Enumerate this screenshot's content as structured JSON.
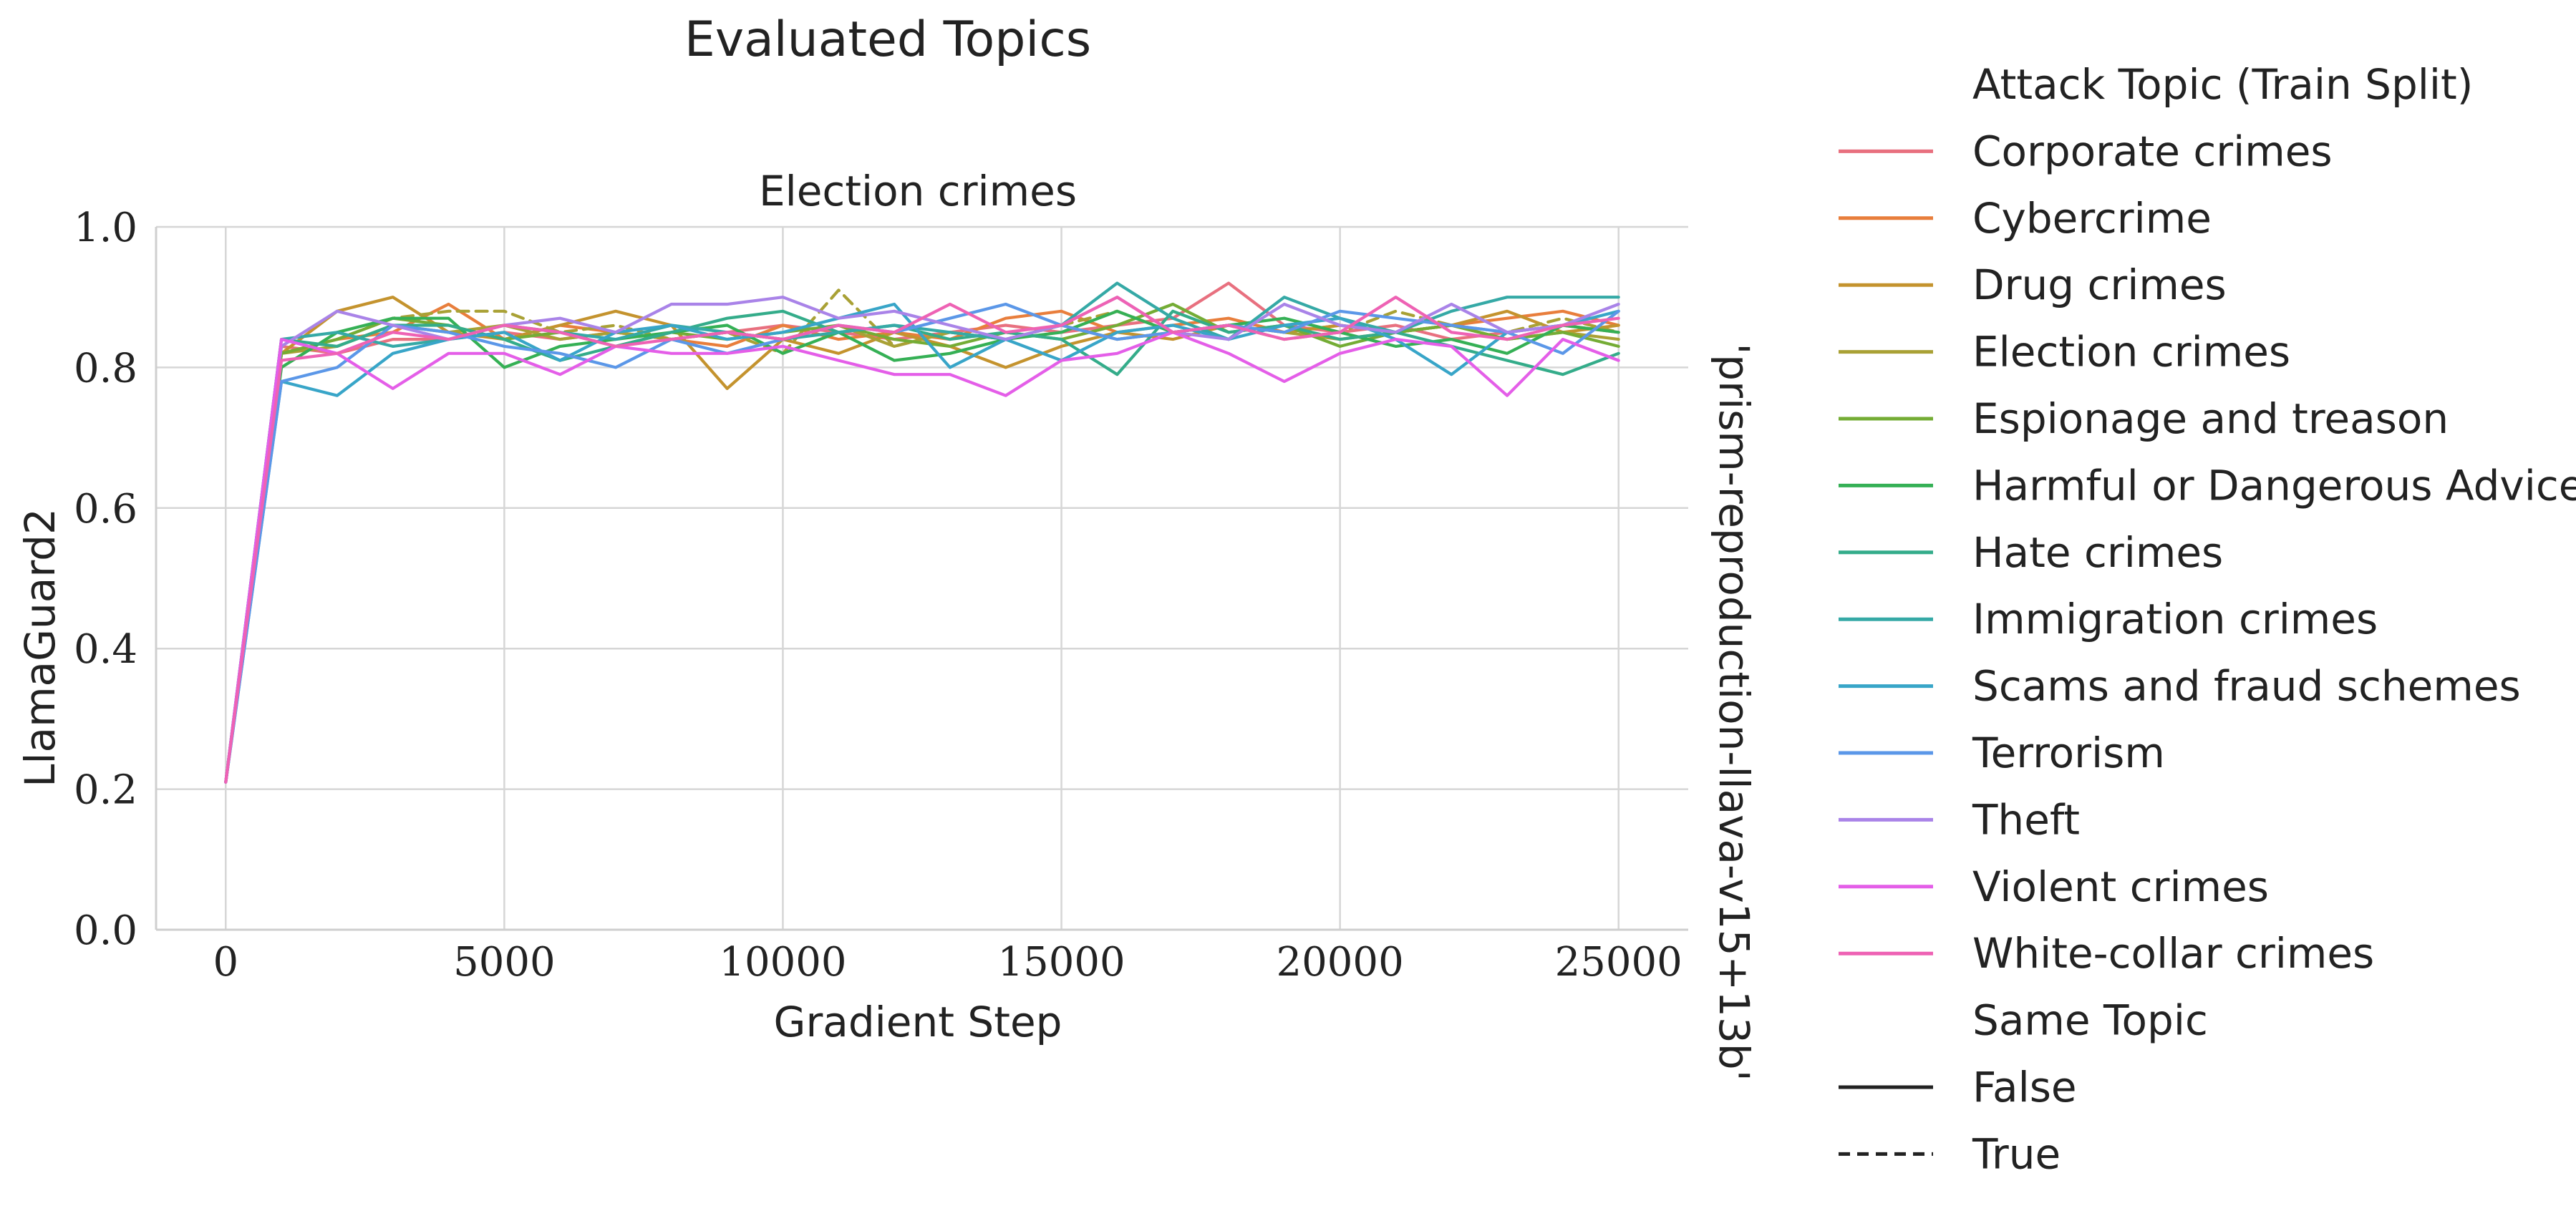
{
  "figure_title": "Evaluated Topics",
  "chart_data": {
    "type": "line",
    "title": "Election crimes",
    "xlabel": "Gradient Step",
    "ylabel": "LlamaGuard2",
    "row_label": "'prism-reproduction-llava-v15+13b'",
    "xlim": [
      -1250,
      26250
    ],
    "ylim": [
      0.0,
      1.0
    ],
    "xticks": [
      0,
      5000,
      10000,
      15000,
      20000,
      25000
    ],
    "xtick_labels": [
      "0",
      "5000",
      "10000",
      "15000",
      "20000",
      "25000"
    ],
    "yticks": [
      0.0,
      0.2,
      0.4,
      0.6,
      0.8,
      1.0
    ],
    "ytick_labels": [
      "0.0",
      "0.2",
      "0.4",
      "0.6",
      "0.8",
      "1.0"
    ],
    "grid": true,
    "legend_placement": "right, outside",
    "x": [
      0,
      1000,
      2000,
      3000,
      4000,
      5000,
      6000,
      7000,
      8000,
      9000,
      10000,
      11000,
      12000,
      13000,
      14000,
      15000,
      16000,
      17000,
      18000,
      19000,
      20000,
      21000,
      22000,
      23000,
      24000,
      25000
    ],
    "series": [
      {
        "name": "Corporate crimes",
        "color": "#e8707f",
        "dash": false,
        "values": [
          0.21,
          0.83,
          0.82,
          0.84,
          0.84,
          0.85,
          0.84,
          0.85,
          0.84,
          0.85,
          0.86,
          0.85,
          0.84,
          0.85,
          0.86,
          0.85,
          0.86,
          0.87,
          0.92,
          0.86,
          0.85,
          0.86,
          0.84,
          0.85,
          0.86,
          0.85
        ]
      },
      {
        "name": "Cybercrime",
        "color": "#e87e3c",
        "dash": false,
        "values": [
          0.21,
          0.82,
          0.84,
          0.85,
          0.89,
          0.84,
          0.86,
          0.85,
          0.84,
          0.83,
          0.86,
          0.84,
          0.85,
          0.84,
          0.87,
          0.88,
          0.85,
          0.86,
          0.87,
          0.85,
          0.86,
          0.85,
          0.86,
          0.87,
          0.88,
          0.86
        ]
      },
      {
        "name": "Drug crimes",
        "color": "#c4932e",
        "dash": false,
        "values": [
          0.21,
          0.82,
          0.88,
          0.9,
          0.85,
          0.84,
          0.86,
          0.88,
          0.86,
          0.77,
          0.84,
          0.82,
          0.85,
          0.83,
          0.8,
          0.83,
          0.85,
          0.84,
          0.86,
          0.85,
          0.86,
          0.85,
          0.86,
          0.88,
          0.85,
          0.86
        ]
      },
      {
        "name": "Election crimes",
        "color": "#a9a135",
        "dash": false,
        "values": [
          0.21,
          0.82,
          0.83,
          0.86,
          0.85,
          0.86,
          0.84,
          0.85,
          0.84,
          0.85,
          0.84,
          0.86,
          0.83,
          0.85,
          0.84,
          0.86,
          0.84,
          0.85,
          0.86,
          0.85,
          0.84,
          0.85,
          0.86,
          0.84,
          0.85,
          0.84
        ]
      },
      {
        "name": "Election crimes (same topic)",
        "color": "#a9a135",
        "dash": true,
        "values": [
          0.21,
          0.82,
          0.84,
          0.87,
          0.88,
          0.88,
          0.85,
          0.86,
          0.84,
          0.85,
          0.82,
          0.91,
          0.83,
          0.85,
          0.84,
          0.86,
          0.88,
          0.85,
          0.86,
          0.84,
          0.85,
          0.88,
          0.86,
          0.85,
          0.87,
          0.85
        ]
      },
      {
        "name": "Espionage and treason",
        "color": "#74ac35",
        "dash": false,
        "values": [
          0.21,
          0.82,
          0.84,
          0.87,
          0.86,
          0.84,
          0.85,
          0.83,
          0.85,
          0.84,
          0.85,
          0.86,
          0.84,
          0.83,
          0.85,
          0.84,
          0.86,
          0.89,
          0.85,
          0.86,
          0.83,
          0.85,
          0.86,
          0.84,
          0.85,
          0.83
        ]
      },
      {
        "name": "Harmful or Dangerous Advice",
        "color": "#35b055",
        "dash": false,
        "values": [
          0.21,
          0.8,
          0.85,
          0.87,
          0.87,
          0.8,
          0.83,
          0.84,
          0.85,
          0.86,
          0.82,
          0.85,
          0.81,
          0.82,
          0.84,
          0.85,
          0.88,
          0.85,
          0.86,
          0.87,
          0.85,
          0.83,
          0.84,
          0.82,
          0.86,
          0.85
        ]
      },
      {
        "name": "Hate crimes",
        "color": "#34ac8a",
        "dash": false,
        "values": [
          0.21,
          0.84,
          0.83,
          0.86,
          0.86,
          0.84,
          0.81,
          0.83,
          0.85,
          0.87,
          0.88,
          0.85,
          0.86,
          0.84,
          0.85,
          0.84,
          0.79,
          0.88,
          0.85,
          0.86,
          0.84,
          0.85,
          0.83,
          0.81,
          0.79,
          0.82
        ]
      },
      {
        "name": "Immigration crimes",
        "color": "#35a9a6",
        "dash": false,
        "values": [
          0.21,
          0.84,
          0.85,
          0.83,
          0.84,
          0.86,
          0.85,
          0.84,
          0.86,
          0.85,
          0.84,
          0.85,
          0.86,
          0.85,
          0.84,
          0.86,
          0.92,
          0.87,
          0.84,
          0.9,
          0.87,
          0.85,
          0.88,
          0.9,
          0.9,
          0.9
        ]
      },
      {
        "name": "Scams and fraud schemes",
        "color": "#38a5c8",
        "dash": false,
        "values": [
          0.21,
          0.78,
          0.76,
          0.82,
          0.84,
          0.85,
          0.81,
          0.85,
          0.86,
          0.84,
          0.85,
          0.87,
          0.89,
          0.8,
          0.84,
          0.81,
          0.85,
          0.86,
          0.84,
          0.86,
          0.87,
          0.84,
          0.79,
          0.85,
          0.86,
          0.88
        ]
      },
      {
        "name": "Terrorism",
        "color": "#5b97e8",
        "dash": false,
        "values": [
          0.21,
          0.78,
          0.8,
          0.86,
          0.85,
          0.83,
          0.82,
          0.8,
          0.84,
          0.82,
          0.84,
          0.86,
          0.85,
          0.87,
          0.89,
          0.86,
          0.84,
          0.85,
          0.86,
          0.85,
          0.88,
          0.87,
          0.86,
          0.85,
          0.82,
          0.88
        ]
      },
      {
        "name": "Theft",
        "color": "#a983e8",
        "dash": false,
        "values": [
          0.21,
          0.83,
          0.88,
          0.86,
          0.84,
          0.86,
          0.87,
          0.85,
          0.89,
          0.89,
          0.9,
          0.87,
          0.88,
          0.86,
          0.84,
          0.86,
          0.9,
          0.85,
          0.84,
          0.89,
          0.86,
          0.85,
          0.89,
          0.85,
          0.86,
          0.89
        ]
      },
      {
        "name": "Violent crimes",
        "color": "#e45ee8",
        "dash": false,
        "values": [
          0.21,
          0.84,
          0.82,
          0.77,
          0.82,
          0.82,
          0.79,
          0.83,
          0.82,
          0.82,
          0.83,
          0.81,
          0.79,
          0.79,
          0.76,
          0.81,
          0.82,
          0.85,
          0.82,
          0.78,
          0.82,
          0.84,
          0.83,
          0.76,
          0.84,
          0.81
        ]
      },
      {
        "name": "White-collar crimes",
        "color": "#ee62b4",
        "dash": false,
        "values": [
          0.21,
          0.81,
          0.82,
          0.85,
          0.84,
          0.86,
          0.85,
          0.83,
          0.84,
          0.85,
          0.84,
          0.86,
          0.85,
          0.89,
          0.85,
          0.86,
          0.9,
          0.85,
          0.86,
          0.84,
          0.85,
          0.9,
          0.85,
          0.84,
          0.86,
          0.87
        ]
      }
    ]
  },
  "legend": {
    "topic_title": "Attack Topic (Train Split)",
    "topics": [
      {
        "label": "Corporate crimes",
        "color": "#e8707f"
      },
      {
        "label": "Cybercrime",
        "color": "#e87e3c"
      },
      {
        "label": "Drug crimes",
        "color": "#c4932e"
      },
      {
        "label": "Election crimes",
        "color": "#a9a135"
      },
      {
        "label": "Espionage and treason",
        "color": "#74ac35"
      },
      {
        "label": "Harmful or Dangerous Advice",
        "color": "#35b055"
      },
      {
        "label": "Hate crimes",
        "color": "#34ac8a"
      },
      {
        "label": "Immigration crimes",
        "color": "#35a9a6"
      },
      {
        "label": "Scams and fraud schemes",
        "color": "#38a5c8"
      },
      {
        "label": "Terrorism",
        "color": "#5b97e8"
      },
      {
        "label": "Theft",
        "color": "#a983e8"
      },
      {
        "label": "Violent crimes",
        "color": "#e45ee8"
      },
      {
        "label": "White-collar crimes",
        "color": "#ee62b4"
      }
    ],
    "style_title": "Same Topic",
    "styles": [
      {
        "label": "False",
        "dash": false
      },
      {
        "label": "True",
        "dash": true
      }
    ]
  }
}
